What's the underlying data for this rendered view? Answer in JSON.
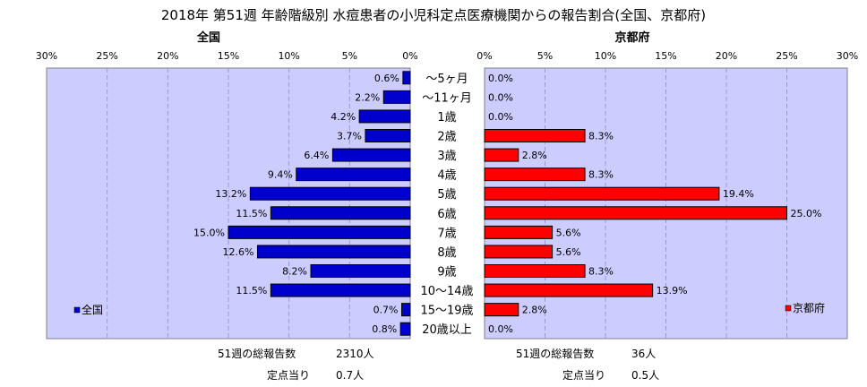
{
  "title": "2018年 第51週 年齢階級別 水痘患者の小児科定点医療機関からの報告割合(全国、京都府)",
  "chart_data": [
    {
      "type": "bar",
      "orientation": "horizontal",
      "direction": "right-to-left",
      "title": "全国",
      "xlim": [
        0,
        30
      ],
      "ticks": [
        "30%",
        "25%",
        "20%",
        "15%",
        "10%",
        "5%",
        "0%"
      ],
      "categories": [
        "～5ヶ月",
        "～11ヶ月",
        "1歳",
        "2歳",
        "3歳",
        "4歳",
        "5歳",
        "6歳",
        "7歳",
        "8歳",
        "9歳",
        "10～14歳",
        "15～19歳",
        "20歳以上"
      ],
      "series": [
        {
          "name": "全国",
          "color": "#0000cc",
          "values": [
            0.6,
            2.2,
            4.2,
            3.7,
            6.4,
            9.4,
            13.2,
            11.5,
            15.0,
            12.6,
            8.2,
            11.5,
            0.7,
            0.8
          ],
          "labels": [
            "0.6%",
            "2.2%",
            "4.2%",
            "3.7%",
            "6.4%",
            "9.4%",
            "13.2%",
            "11.5%",
            "15.0%",
            "12.6%",
            "8.2%",
            "11.5%",
            "0.7%",
            "0.8%"
          ]
        }
      ],
      "legend": {
        "label": "全国",
        "position": "bottom-left"
      },
      "grid": true,
      "plot_background": "#ccccff"
    },
    {
      "type": "bar",
      "orientation": "horizontal",
      "direction": "left-to-right",
      "title": "京都府",
      "xlim": [
        0,
        30
      ],
      "ticks": [
        "0%",
        "5%",
        "10%",
        "15%",
        "20%",
        "25%",
        "30%"
      ],
      "categories": [
        "～5ヶ月",
        "～11ヶ月",
        "1歳",
        "2歳",
        "3歳",
        "4歳",
        "5歳",
        "6歳",
        "7歳",
        "8歳",
        "9歳",
        "10～14歳",
        "15～19歳",
        "20歳以上"
      ],
      "series": [
        {
          "name": "京都府",
          "color": "#ff0000",
          "values": [
            0.0,
            0.0,
            0.0,
            8.3,
            2.8,
            8.3,
            19.4,
            25.0,
            5.6,
            5.6,
            8.3,
            13.9,
            2.8,
            0.0
          ],
          "labels": [
            "0.0%",
            "0.0%",
            "0.0%",
            "8.3%",
            "2.8%",
            "8.3%",
            "19.4%",
            "25.0%",
            "5.6%",
            "5.6%",
            "8.3%",
            "13.9%",
            "2.8%",
            "0.0%"
          ]
        }
      ],
      "legend": {
        "label": "京都府",
        "position": "bottom-right"
      },
      "grid": true,
      "plot_background": "#ccccff"
    }
  ],
  "footer": {
    "national": {
      "total_label": "51週の総報告数",
      "total_value": "2310人",
      "per_label": "定点当り",
      "per_value": "0.7人"
    },
    "kyoto": {
      "total_label": "51週の総報告数",
      "total_value": "36人",
      "per_label": "定点当り",
      "per_value": "0.5人"
    }
  }
}
